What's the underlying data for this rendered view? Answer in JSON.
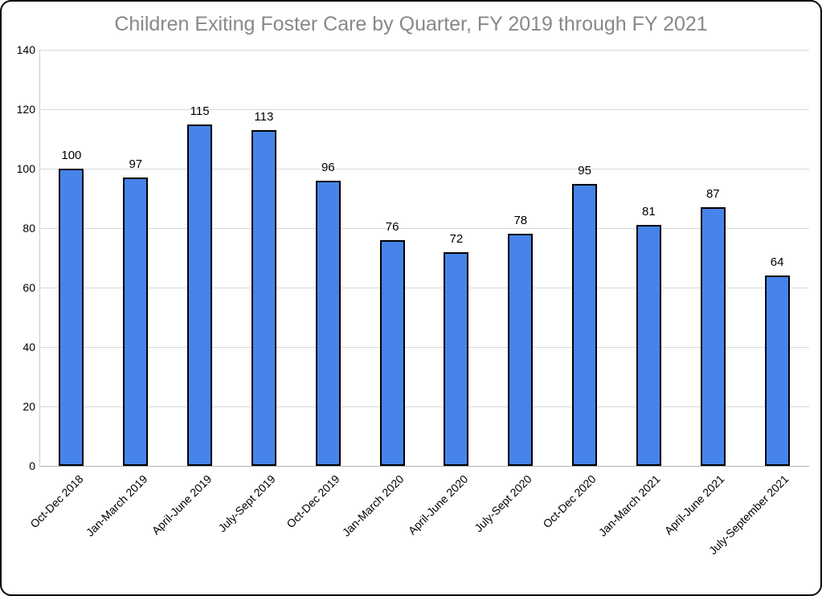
{
  "chart_data": {
    "type": "bar",
    "title": "Children Exiting Foster Care by Quarter, FY 2019 through FY 2021",
    "categories": [
      "Oct-Dec 2018",
      "Jan-March 2019",
      "April-June 2019",
      "July-Sept 2019",
      "Oct-Dec 2019",
      "Jan-March 2020",
      "April-June 2020",
      "July-Sept 2020",
      "Oct-Dec 2020",
      "Jan-March 2021",
      "April-June 2021",
      "July-September 2021"
    ],
    "values": [
      100,
      97,
      115,
      113,
      96,
      76,
      72,
      78,
      95,
      81,
      87,
      64
    ],
    "data_labels": [
      "100",
      "97",
      "115",
      "113",
      "96",
      "76",
      "72",
      "78",
      "95",
      "81",
      "87",
      "64"
    ],
    "xlabel": "",
    "ylabel": "",
    "ylim": [
      0,
      140
    ],
    "yticks": [
      0,
      20,
      40,
      60,
      80,
      100,
      120,
      140
    ],
    "grid": true,
    "legend_position": "none",
    "colors": {
      "bar_fill": "#4684ea",
      "bar_border": "#000000",
      "title_text": "#888888",
      "axis_text": "#000000",
      "gridline": "#d9d9d9",
      "y_axis_line": "#cccccc",
      "x_axis_line": "#b0b0b0",
      "background": "#ffffff",
      "frame_border": "#000000"
    }
  }
}
